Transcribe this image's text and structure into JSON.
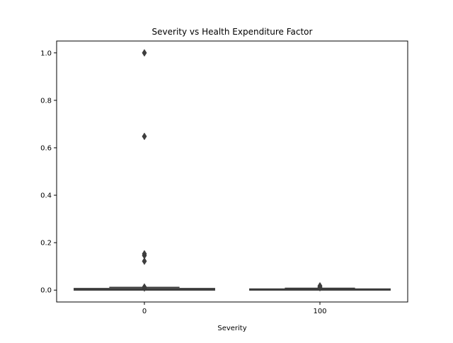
{
  "chart_data": {
    "type": "box",
    "title": "Severity vs Health Expenditure Factor",
    "xlabel": "Severity",
    "ylabel": "",
    "ylim": [
      -0.05,
      1.05
    ],
    "yticks": [
      0.0,
      0.2,
      0.4,
      0.6,
      0.8,
      1.0
    ],
    "ytick_labels": [
      "0.0",
      "0.2",
      "0.4",
      "0.6",
      "0.8",
      "1.0"
    ],
    "categories": [
      "0",
      "100"
    ],
    "groups": [
      {
        "category": "0",
        "box": {
          "whisker_low": 0.0,
          "q1": 0.0,
          "median": 0.003,
          "q3": 0.007,
          "whisker_high": 0.012
        },
        "outliers": [
          1.0,
          0.648,
          0.153,
          0.146,
          0.122,
          0.013,
          0.009
        ]
      },
      {
        "category": "100",
        "box": {
          "whisker_low": 0.0,
          "q1": 0.0,
          "median": 0.002,
          "q3": 0.005,
          "whisker_high": 0.008
        },
        "outliers": [
          0.018,
          0.013,
          0.01
        ]
      }
    ],
    "grid": false,
    "legend": "none",
    "colors": {
      "box": "#3d3d3d",
      "outlier": "#3d3d3d",
      "axes": "#000000"
    }
  }
}
